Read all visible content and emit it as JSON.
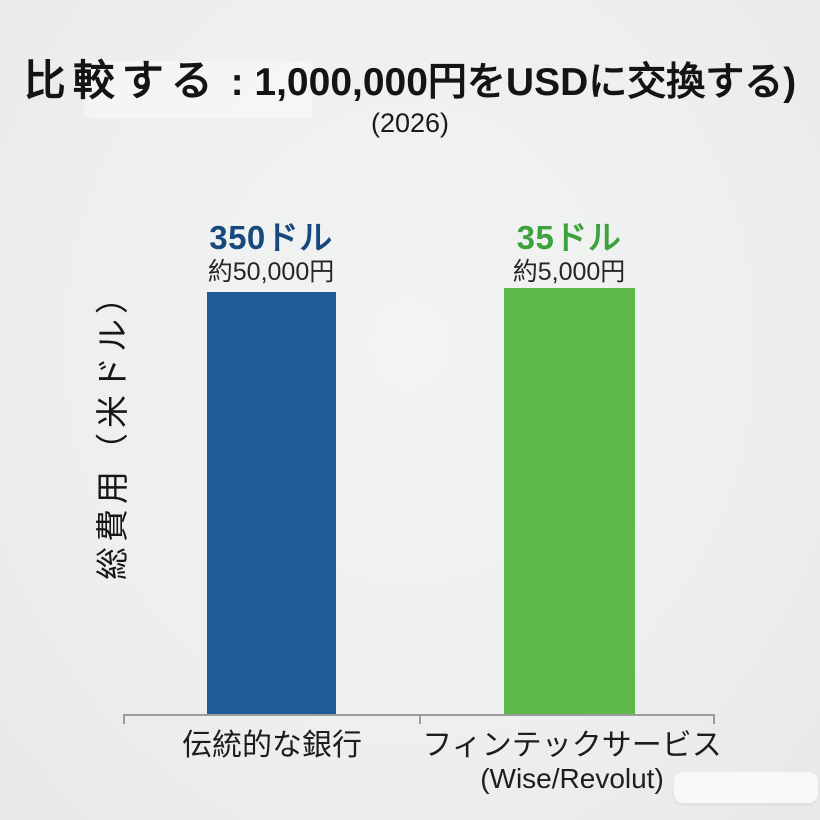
{
  "header": {
    "title_prefix": "比較する",
    "title_main": " : 1,000,000円をUSDに交換する)",
    "subtitle": "(2026)"
  },
  "chart": {
    "y_axis_label": "総費用（米ドル）",
    "bars": [
      {
        "value_label": "350ドル",
        "sub_label": "約50,000円",
        "category": "伝統的な銀行",
        "category_sub": "",
        "bar_color": "#1F5C95",
        "value_color": "#17497E"
      },
      {
        "value_label": "35ドル",
        "sub_label": "約5,000円",
        "category": "フィンテックサービス",
        "category_sub": "(Wise/Revolut)",
        "bar_color": "#5CB84A",
        "value_color": "#3DA23C"
      }
    ]
  },
  "chart_data": {
    "type": "bar",
    "title": "比較する : 1,000,000円をUSDに交換する)",
    "subtitle": "(2026)",
    "xlabel": "",
    "ylabel": "総費用（米ドル）",
    "categories": [
      "伝統的な銀行",
      "フィンテックサービス (Wise/Revolut)"
    ],
    "series": [
      {
        "name": "総費用 (米ドル)",
        "values": [
          350,
          35
        ],
        "value_labels_usd": [
          "350ドル",
          "35ドル"
        ],
        "value_labels_jpy": [
          "約50,000円",
          "約5,000円"
        ],
        "colors": [
          "#1F5C95",
          "#5CB84A"
        ]
      }
    ],
    "layout": {
      "grid": false,
      "legend": false,
      "y_ticks_visible": false,
      "bars_drawn_equal_height": true,
      "axis_color": "#9B9B9B",
      "background_color": "#EEF0EF"
    }
  }
}
